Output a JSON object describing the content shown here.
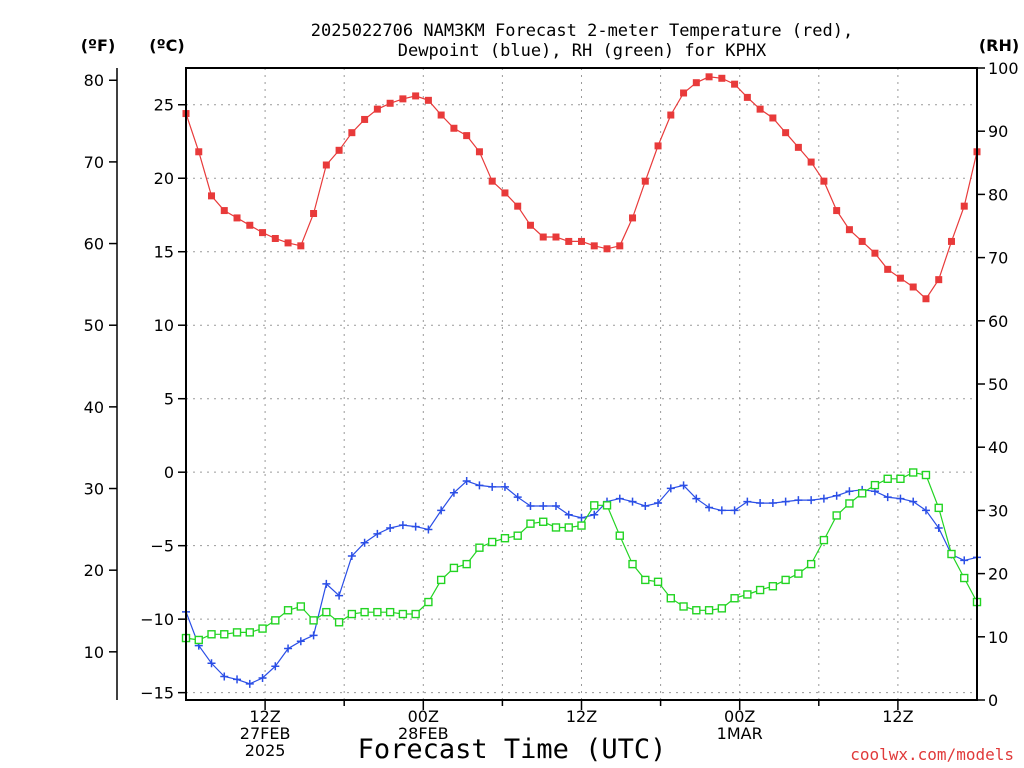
{
  "chart_data": {
    "type": "line",
    "title_line1": "2025022706 NAM3KM Forecast 2-meter Temperature (red),",
    "title_line2": "Dewpoint (blue), RH (green) for KPHX",
    "xlabel": "Forecast Time (UTC)",
    "credit": "coolwx.com/models",
    "axes": {
      "fahrenheit": {
        "unit_label": "(ºF)",
        "ticks": [
          10,
          20,
          30,
          40,
          50,
          60,
          70,
          80
        ]
      },
      "celsius": {
        "unit_label": "(ºC)",
        "ylim": [
          -15.5,
          27.5
        ],
        "ticks": [
          -15,
          -10,
          -5,
          0,
          5,
          10,
          15,
          20,
          25
        ]
      },
      "rh": {
        "unit_label": "(RH)",
        "ylim": [
          0,
          100
        ],
        "ticks": [
          0,
          10,
          20,
          30,
          40,
          50,
          60,
          70,
          80,
          90,
          100
        ]
      }
    },
    "x_range_hours": [
      6,
      66
    ],
    "x_ticks": [
      {
        "hour": 12,
        "lines": [
          "12Z",
          "27FEB",
          "2025"
        ]
      },
      {
        "hour": 24,
        "lines": [
          "00Z",
          "28FEB"
        ]
      },
      {
        "hour": 36,
        "lines": [
          "12Z"
        ]
      },
      {
        "hour": 48,
        "lines": [
          "00Z",
          "1MAR"
        ]
      },
      {
        "hour": 60,
        "lines": [
          "12Z"
        ]
      }
    ],
    "grid": true,
    "series": [
      {
        "name": "Temperature (red)",
        "color": "#e83a3a",
        "marker": "filled-square",
        "values_c": [
          24.4,
          21.8,
          18.8,
          17.8,
          17.3,
          16.8,
          16.3,
          15.9,
          15.6,
          15.4,
          17.6,
          20.9,
          21.9,
          23.1,
          24.0,
          24.7,
          25.1,
          25.4,
          25.6,
          25.3,
          24.3,
          23.4,
          22.9,
          21.8,
          19.8,
          19.0,
          18.1,
          16.8,
          16.0,
          16.0,
          15.7,
          15.7,
          15.4,
          15.2,
          15.4,
          17.3,
          19.8,
          22.2,
          24.3,
          25.8,
          26.5,
          26.9,
          26.8,
          26.4,
          25.5,
          24.7,
          24.1,
          23.1,
          22.1,
          21.1,
          19.8,
          17.8,
          16.5,
          15.7,
          14.9,
          13.8,
          13.2,
          12.6,
          11.8,
          13.1,
          15.7,
          18.1,
          21.8
        ]
      },
      {
        "name": "Dewpoint (blue)",
        "color": "#2a4ee6",
        "marker": "plus",
        "values_c": [
          -9.5,
          -11.8,
          -13.0,
          -13.9,
          -14.1,
          -14.4,
          -14.0,
          -13.2,
          -12.0,
          -11.5,
          -11.1,
          -7.6,
          -8.4,
          -5.7,
          -4.8,
          -4.2,
          -3.8,
          -3.6,
          -3.7,
          -3.9,
          -2.6,
          -1.4,
          -0.6,
          -0.9,
          -1.0,
          -1.0,
          -1.7,
          -2.3,
          -2.3,
          -2.3,
          -2.9,
          -3.1,
          -2.9,
          -2.0,
          -1.8,
          -2.0,
          -2.3,
          -2.1,
          -1.1,
          -0.9,
          -1.8,
          -2.4,
          -2.6,
          -2.6,
          -2.0,
          -2.1,
          -2.1,
          -2.0,
          -1.9,
          -1.9,
          -1.8,
          -1.6,
          -1.3,
          -1.2,
          -1.3,
          -1.7,
          -1.8,
          -2.0,
          -2.6,
          -3.8,
          -5.6,
          -6.0,
          -5.8
        ]
      },
      {
        "name": "RH (green)",
        "color": "#22d422",
        "marker": "open-square",
        "values_pct": [
          9.8,
          9.5,
          10.4,
          10.4,
          10.7,
          10.7,
          11.3,
          12.6,
          14.2,
          14.8,
          12.6,
          13.9,
          12.3,
          13.6,
          13.9,
          13.9,
          13.9,
          13.6,
          13.6,
          15.5,
          19.0,
          20.9,
          21.5,
          24.1,
          25.0,
          25.6,
          26.0,
          27.9,
          28.2,
          27.3,
          27.3,
          27.6,
          30.8,
          30.8,
          26.0,
          21.5,
          19.0,
          18.7,
          16.1,
          14.8,
          14.2,
          14.2,
          14.5,
          16.1,
          16.7,
          17.4,
          18.0,
          19.0,
          20.0,
          21.5,
          25.3,
          29.2,
          31.1,
          32.7,
          34.0,
          35.0,
          35.0,
          36.0,
          35.6,
          30.4,
          23.1,
          19.3,
          15.5
        ]
      }
    ]
  }
}
